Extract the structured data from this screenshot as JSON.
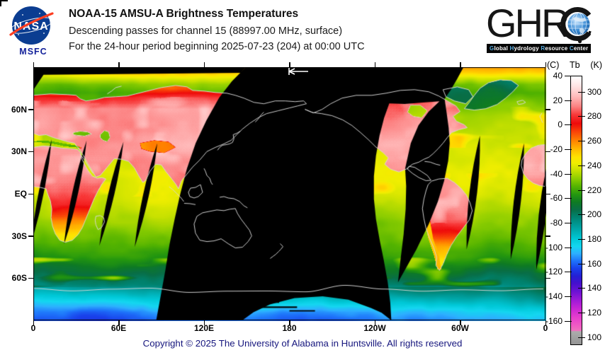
{
  "header": {
    "nasa": {
      "wordmark": "NASA",
      "center_label": "MSFC"
    },
    "title_line1": "NOAA-15 AMSU-A Brightness Temperatures",
    "title_line2": "Descending passes for channel 15 (88997.00 MHz, surface)",
    "title_line3": "For the 24-hour period beginning 2025-07-23 (204) at 00:00 UTC",
    "ghrc": {
      "letters": "GHR",
      "letter_c": "C",
      "tagline": [
        [
          "G",
          "lobal"
        ],
        [
          "H",
          "ydrology"
        ],
        [
          "R",
          "esource"
        ],
        [
          "C",
          "enter"
        ]
      ]
    }
  },
  "map": {
    "x_tick_labels": [
      "0",
      "60E",
      "120E",
      "180",
      "120W",
      "60W",
      "0"
    ],
    "y_tick_labels": [
      "60N",
      "30N",
      "EQ",
      "30S",
      "60S"
    ]
  },
  "colorbar": {
    "header_left": "(C)",
    "header_mid": "Tb",
    "header_right": "(K)",
    "celsius_ticks": [
      "40",
      "20",
      "0",
      "-20",
      "-40",
      "-60",
      "-80",
      "-100",
      "-120",
      "-140",
      "-160"
    ],
    "kelvin_ticks": [
      "300",
      "280",
      "260",
      "240",
      "220",
      "200",
      "180",
      "160",
      "140",
      "120",
      "100"
    ]
  },
  "footer": {
    "copyright": "Copyright © 2025 The University of Alabama in Huntsville.  All rights reserved"
  },
  "colors": {
    "nasa_blue": "#0b3d91",
    "nasa_red": "#fc3d21",
    "msfc_text": "#13219a",
    "copyright_text": "#15157d",
    "ghrc_initials": "#55aadf",
    "no_data": "#000000",
    "coastline": "#d8d8d8"
  },
  "chart_data": {
    "type": "heatmap",
    "title": "NOAA-15 AMSU-A Brightness Temperatures",
    "subtitle": "Descending passes for channel 15 (88997.00 MHz, surface)",
    "period": "24-hour period beginning 2025-07-23 (204) at 00:00 UTC",
    "projection": "equirectangular world map, longitude 0 to 360E left-to-right",
    "x_axis": {
      "label": "longitude",
      "ticks": [
        "0",
        "60E",
        "120E",
        "180",
        "120W",
        "60W",
        "0"
      ]
    },
    "y_axis": {
      "label": "latitude",
      "ticks": [
        "60N",
        "30N",
        "EQ",
        "30S",
        "60S"
      ],
      "range_deg": [
        -90,
        90
      ]
    },
    "colorbar": {
      "header": "(C) Tb (K)",
      "kelvin_range": [
        95,
        313
      ],
      "celsius_ticks": [
        40,
        20,
        0,
        -20,
        -40,
        -60,
        -80,
        -100,
        -120,
        -140,
        -160
      ],
      "kelvin_ticks": [
        300,
        280,
        260,
        240,
        220,
        200,
        180,
        160,
        140,
        120,
        100
      ],
      "position": "right"
    },
    "notes": "Warm land (N. hemisphere summer) reds ~285-300K; oceans green ~225-240K; Antarctica cyan-blue ~160-200K; black areas = no descending-pass coverage; grey coastlines overlaid; white arrow marker at top near 180 meridian"
  }
}
